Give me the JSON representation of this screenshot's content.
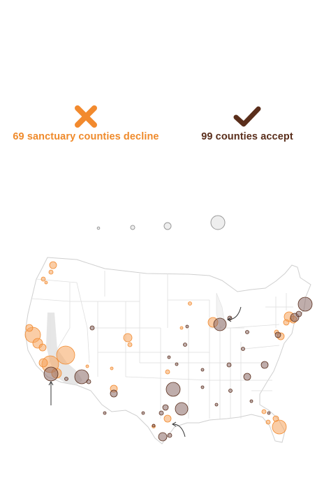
{
  "legend": {
    "decline": {
      "label": "69 sanctuary counties decline",
      "icon": "x-mark-icon",
      "color": "#f28a2e"
    },
    "accept": {
      "label": "99 counties accept",
      "icon": "check-mark-icon",
      "color": "#5a2e1b"
    }
  },
  "size_legend": {
    "icon": "circle-size-icon",
    "levels": 4
  },
  "map": {
    "region": "United States counties",
    "colors": {
      "decline": "#f6a45c",
      "accept": "#8a6a66",
      "border": "#d9d9d9",
      "highlight_area": "#e3e3e3"
    },
    "annotations": [
      {
        "name": "arrow-los-angeles",
        "icon": "arrow-icon"
      },
      {
        "name": "arrow-chicago",
        "icon": "arrow-icon"
      },
      {
        "name": "arrow-houston",
        "icon": "arrow-icon"
      }
    ]
  }
}
